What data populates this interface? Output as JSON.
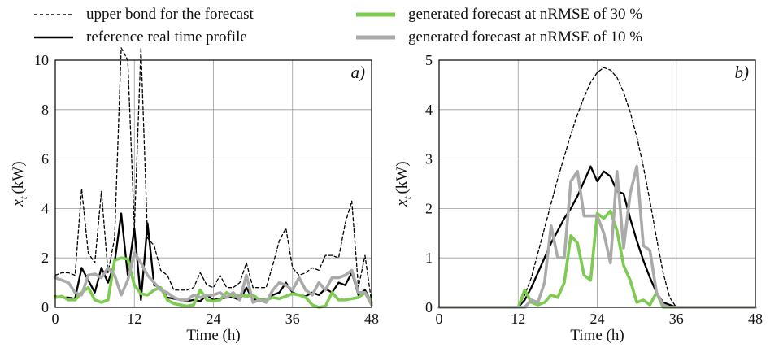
{
  "legend": [
    {
      "name": "upper bond for the forecast",
      "color": "#000000",
      "dash": true
    },
    {
      "name": "generated forecast at nRMSE of 30 %",
      "color": "#7ecb52",
      "dash": false
    },
    {
      "name": "reference real time profile",
      "color": "#000000",
      "dash": false
    },
    {
      "name": "generated forecast at nRMSE of 10 %",
      "color": "#aaaaaa",
      "dash": false
    }
  ],
  "chart_data": [
    {
      "type": "line",
      "panel_label": "a)",
      "xlabel": "Time (h)",
      "ylabel_main": "x",
      "ylabel_sub": "t",
      "ylabel_unit": "(kW)",
      "xlim": [
        0,
        48
      ],
      "ylim": [
        0,
        10
      ],
      "xticks": [
        0,
        12,
        24,
        36,
        48
      ],
      "yticks": [
        0,
        2,
        4,
        6,
        8,
        10
      ],
      "grid": true,
      "x": [
        0,
        1,
        2,
        3,
        4,
        5,
        6,
        7,
        8,
        9,
        10,
        11,
        12,
        13,
        14,
        15,
        16,
        17,
        18,
        19,
        20,
        21,
        22,
        23,
        24,
        25,
        26,
        27,
        28,
        29,
        30,
        31,
        32,
        33,
        34,
        35,
        36,
        37,
        38,
        39,
        40,
        41,
        42,
        43,
        44,
        45,
        46,
        47,
        48
      ],
      "series": [
        {
          "name": "upper bond for the forecast",
          "color": "#000000",
          "dash": true,
          "width": 1.3,
          "values": [
            1.3,
            1.4,
            1.4,
            1.3,
            4.8,
            2.2,
            1.8,
            4.7,
            1.4,
            2.8,
            10.5,
            10.0,
            3.2,
            10.5,
            2.8,
            2.5,
            1.5,
            1.3,
            0.7,
            0.7,
            0.7,
            0.8,
            1.4,
            0.9,
            0.8,
            1.3,
            0.8,
            0.8,
            1.0,
            1.8,
            0.8,
            0.8,
            0.8,
            1.7,
            2.7,
            3.2,
            1.6,
            1.3,
            1.4,
            1.6,
            1.5,
            2.1,
            2.1,
            2.0,
            3.4,
            4.3,
            0.8,
            2.1,
            0.2
          ]
        },
        {
          "name": "reference real time profile",
          "color": "#000000",
          "dash": false,
          "width": 2.3,
          "values": [
            0.45,
            0.4,
            0.4,
            0.35,
            1.6,
            1.1,
            0.6,
            1.6,
            1.0,
            1.8,
            3.8,
            1.3,
            3.2,
            0.3,
            3.4,
            0.9,
            0.8,
            0.4,
            0.35,
            0.3,
            0.25,
            0.3,
            0.25,
            0.5,
            0.3,
            0.35,
            0.4,
            0.4,
            0.3,
            0.8,
            0.3,
            0.35,
            0.3,
            0.5,
            0.6,
            1.0,
            0.6,
            0.5,
            0.45,
            0.6,
            0.5,
            0.75,
            0.6,
            1.0,
            0.9,
            1.4,
            0.5,
            0.7,
            0.2
          ]
        },
        {
          "name": "generated forecast at nRMSE of 30 %",
          "color": "#7ecb52",
          "dash": false,
          "width": 3.6,
          "values": [
            0.4,
            0.45,
            0.3,
            0.3,
            0.6,
            0.8,
            0.3,
            0.2,
            0.3,
            1.9,
            2.0,
            1.95,
            0.9,
            0.55,
            0.5,
            0.7,
            0.8,
            0.3,
            0.15,
            0.1,
            0.05,
            0.1,
            0.7,
            0.3,
            0.25,
            0.3,
            0.6,
            0.45,
            0.5,
            0.45,
            0.5,
            0.3,
            0.3,
            0.4,
            0.35,
            0.45,
            0.55,
            0.5,
            0.4,
            0.1,
            0.0,
            0.05,
            0.6,
            0.3,
            0.3,
            0.35,
            0.4,
            0.6,
            0.2
          ]
        },
        {
          "name": "generated forecast at nRMSE of 10 %",
          "color": "#aaaaaa",
          "dash": false,
          "width": 3.6,
          "values": [
            1.2,
            1.1,
            1.0,
            0.6,
            0.5,
            1.3,
            1.35,
            1.2,
            1.6,
            1.3,
            0.5,
            1.1,
            2.2,
            1.8,
            1.3,
            1.0,
            0.7,
            0.6,
            0.4,
            0.3,
            0.3,
            0.5,
            0.4,
            0.5,
            0.5,
            0.6,
            0.4,
            0.6,
            0.3,
            1.3,
            0.2,
            0.3,
            0.2,
            0.7,
            1.0,
            0.9,
            0.7,
            1.2,
            0.7,
            0.5,
            1.0,
            0.7,
            1.2,
            1.2,
            1.3,
            1.5,
            0.6,
            0.6,
            0.1
          ]
        }
      ]
    },
    {
      "type": "line",
      "panel_label": "b)",
      "xlabel": "Time (h)",
      "ylabel_main": "x",
      "ylabel_sub": "t",
      "ylabel_unit": "(kW)",
      "xlim": [
        0,
        48
      ],
      "ylim": [
        0,
        5
      ],
      "xticks": [
        0,
        12,
        24,
        36,
        48
      ],
      "yticks": [
        0,
        1,
        2,
        3,
        4,
        5
      ],
      "grid": true,
      "x": [
        0,
        1,
        2,
        3,
        4,
        5,
        6,
        7,
        8,
        9,
        10,
        11,
        12,
        13,
        14,
        15,
        16,
        17,
        18,
        19,
        20,
        21,
        22,
        23,
        24,
        25,
        26,
        27,
        28,
        29,
        30,
        31,
        32,
        33,
        34,
        35,
        36,
        37,
        38,
        39,
        40,
        41,
        42,
        43,
        44,
        45,
        46,
        47,
        48
      ],
      "series": [
        {
          "name": "upper bond for the forecast",
          "color": "#000000",
          "dash": true,
          "width": 1.3,
          "values": [
            0,
            0,
            0,
            0,
            0,
            0,
            0,
            0,
            0,
            0,
            0,
            0,
            0,
            0.25,
            0.6,
            1.1,
            1.6,
            2.1,
            2.6,
            3.05,
            3.5,
            3.9,
            4.25,
            4.55,
            4.75,
            4.85,
            4.8,
            4.65,
            4.35,
            3.95,
            3.45,
            2.85,
            2.15,
            1.4,
            0.7,
            0.2,
            0,
            0,
            0,
            0,
            0,
            0,
            0,
            0,
            0,
            0,
            0,
            0,
            0
          ]
        },
        {
          "name": "reference real time profile",
          "color": "#000000",
          "dash": false,
          "width": 2.3,
          "values": [
            0,
            0,
            0,
            0,
            0,
            0,
            0,
            0,
            0,
            0,
            0,
            0,
            0,
            0.15,
            0.4,
            0.7,
            1.0,
            1.3,
            1.55,
            1.8,
            2.0,
            2.25,
            2.55,
            2.85,
            2.55,
            2.75,
            2.65,
            2.35,
            2.3,
            1.8,
            1.35,
            0.95,
            0.6,
            0.3,
            0.1,
            0.05,
            0,
            0,
            0,
            0,
            0,
            0,
            0,
            0,
            0,
            0,
            0,
            0,
            0
          ]
        },
        {
          "name": "generated forecast at nRMSE of 30 %",
          "color": "#7ecb52",
          "dash": false,
          "width": 3.6,
          "values": [
            0,
            0,
            0,
            0,
            0,
            0,
            0,
            0,
            0,
            0,
            0,
            0,
            0,
            0.35,
            0.1,
            0.05,
            0.1,
            0.25,
            0.2,
            0.5,
            1.45,
            1.3,
            0.65,
            0.55,
            1.9,
            1.8,
            1.95,
            1.55,
            0.85,
            0.55,
            0.1,
            0.15,
            0.05,
            0.3,
            0.0,
            0,
            0,
            0,
            0,
            0,
            0,
            0,
            0,
            0,
            0,
            0,
            0,
            0,
            0
          ]
        },
        {
          "name": "generated forecast at nRMSE of 10 %",
          "color": "#aaaaaa",
          "dash": false,
          "width": 3.6,
          "values": [
            0,
            0,
            0,
            0,
            0,
            0,
            0,
            0,
            0,
            0,
            0,
            0,
            0,
            0,
            0.15,
            0.1,
            0.5,
            1.65,
            1.0,
            1.0,
            2.55,
            2.75,
            1.85,
            1.85,
            1.85,
            1.5,
            0.9,
            2.75,
            1.2,
            2.3,
            2.85,
            1.25,
            1.15,
            0.3,
            0.05,
            0,
            0,
            0,
            0,
            0,
            0,
            0,
            0,
            0,
            0,
            0,
            0,
            0,
            0
          ]
        }
      ]
    }
  ]
}
